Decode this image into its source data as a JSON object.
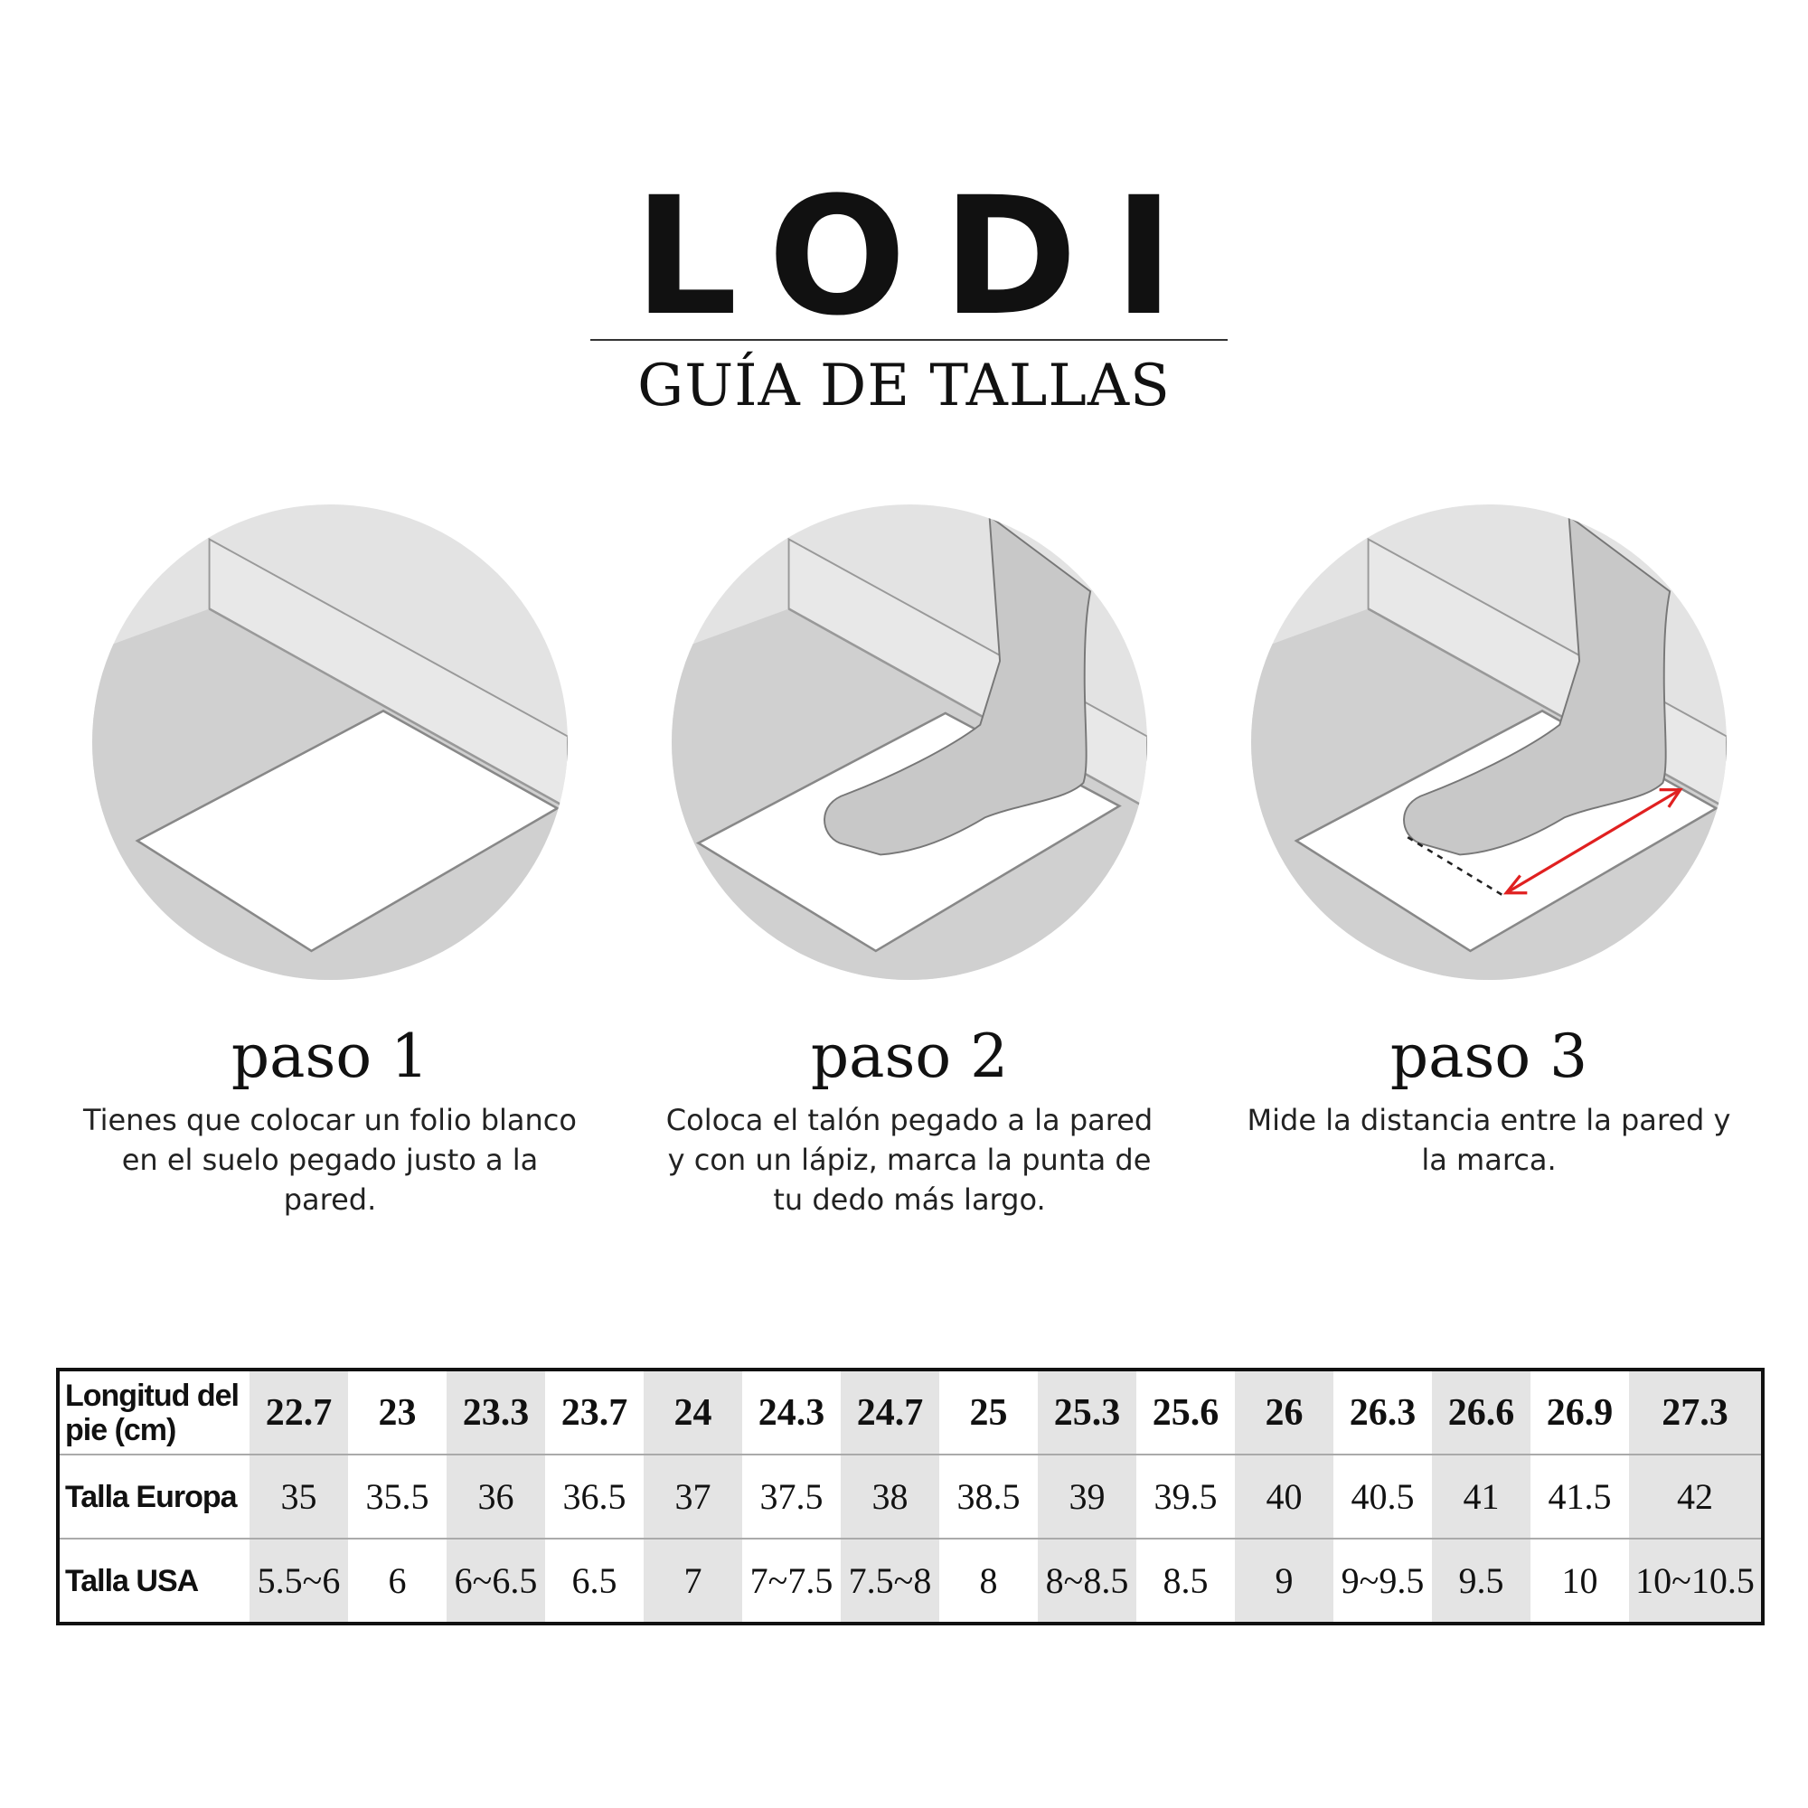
{
  "brand": "LODI",
  "title": "GUÍA DE TALLAS",
  "colors": {
    "accent_arrow": "#e02020",
    "column_shade": "#e4e4e4",
    "floor": "#d0d0d0",
    "wall": "#e3e3e3"
  },
  "steps": [
    {
      "title": "paso 1",
      "description": "Tienes que colocar un folio blanco en el suelo pegado justo a la pared.",
      "icon": "paper-on-floor-illustration"
    },
    {
      "title": "paso 2",
      "description": "Coloca el talón pegado a la pared y con un lápiz, marca la punta de tu dedo más largo.",
      "icon": "foot-on-paper-illustration"
    },
    {
      "title": "paso 3",
      "description": "Mide la distancia entre la pared y la marca.",
      "icon": "foot-measure-illustration"
    }
  ],
  "size_table": {
    "rows": [
      {
        "label": "Longitud del pie (cm)",
        "values": [
          "22.7",
          "23",
          "23.3",
          "23.7",
          "24",
          "24.3",
          "24.7",
          "25",
          "25.3",
          "25.6",
          "26",
          "26.3",
          "26.6",
          "26.9",
          "27.3"
        ]
      },
      {
        "label": "Talla Europa",
        "values": [
          "35",
          "35.5",
          "36",
          "36.5",
          "37",
          "37.5",
          "38",
          "38.5",
          "39",
          "39.5",
          "40",
          "40.5",
          "41",
          "41.5",
          "42"
        ]
      },
      {
        "label": "Talla USA",
        "values": [
          "5.5~6",
          "6",
          "6~6.5",
          "6.5",
          "7",
          "7~7.5",
          "7.5~8",
          "8",
          "8~8.5",
          "8.5",
          "9",
          "9~9.5",
          "9.5",
          "10",
          "10~10.5"
        ]
      }
    ]
  }
}
